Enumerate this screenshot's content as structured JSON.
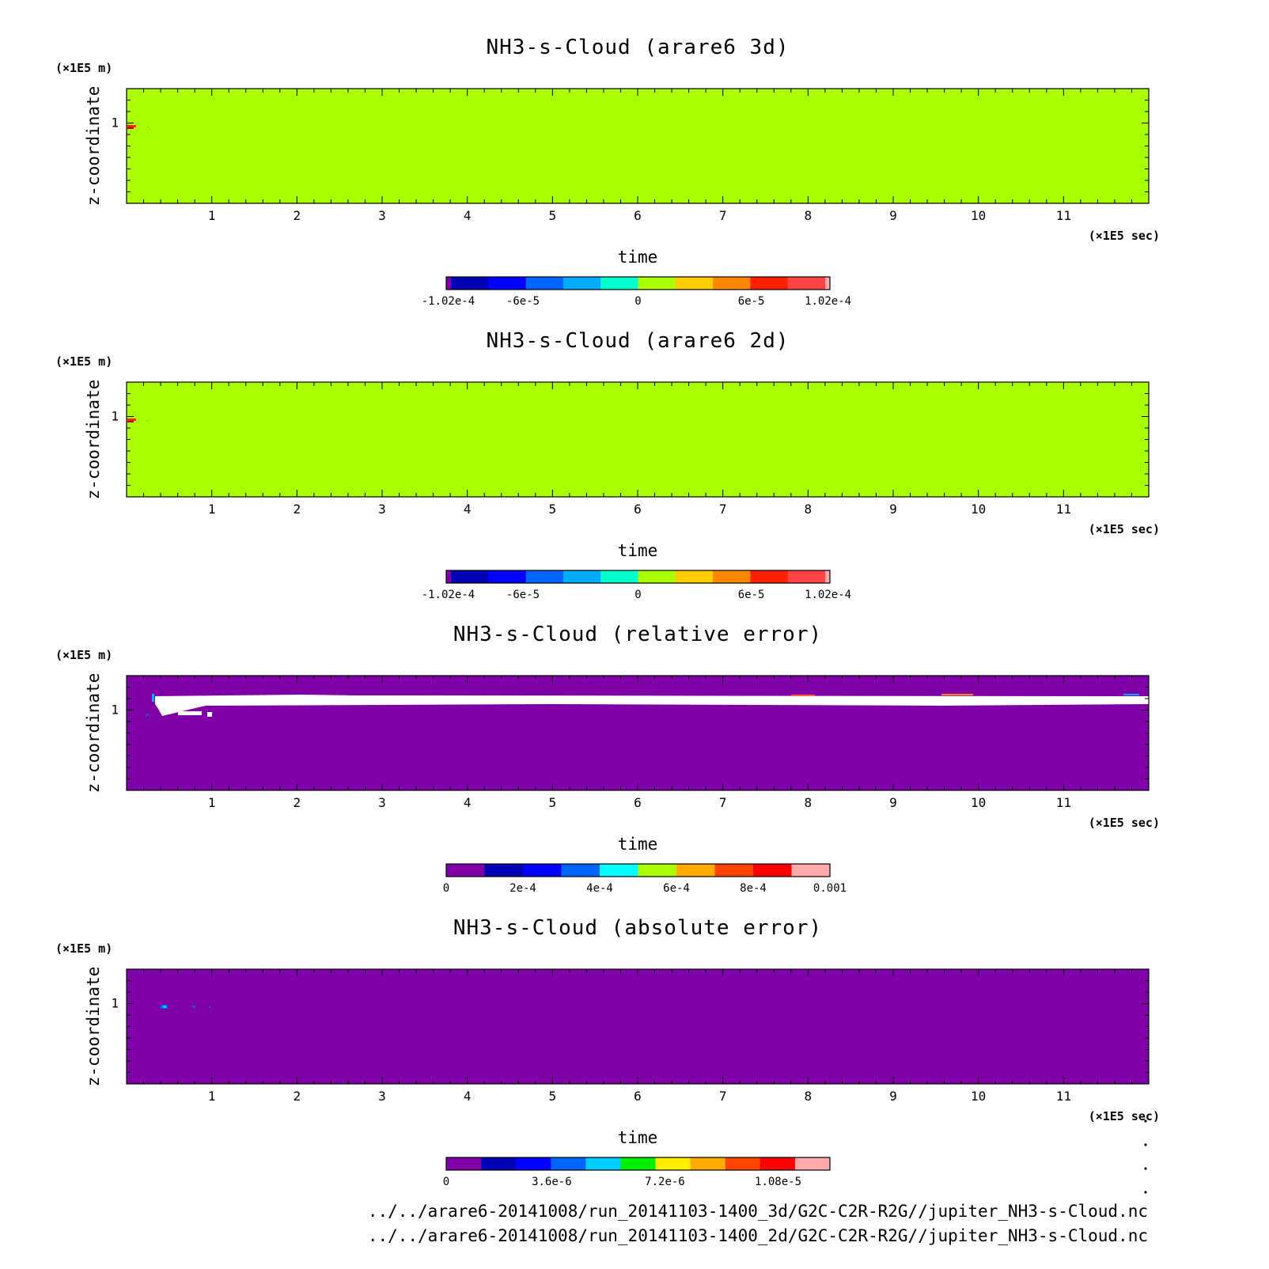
{
  "chart_data": [
    {
      "type": "heatmap",
      "title": "NH3-s-Cloud (arare6 3d)",
      "xlabel": "time",
      "x_unit": "(×1E5 sec)",
      "ylabel": "z-coordinate",
      "y_unit": "(×1E5 m)",
      "x_ticks": [
        "1",
        "2",
        "3",
        "4",
        "5",
        "6",
        "7",
        "8",
        "9",
        "10",
        "11"
      ],
      "y_ticks": [
        "1"
      ],
      "field_color": "#aaff00",
      "colorbar": {
        "colors": [
          "#8000a8",
          "#0000b4",
          "#0000ff",
          "#0064ff",
          "#00aaff",
          "#00ffcc",
          "#aaff00",
          "#ffcc00",
          "#ff8800",
          "#ff2000",
          "#ff4444",
          "#ffaaaa"
        ],
        "labels": [
          "-1.02e-4",
          "-6e-5",
          "0",
          "6e-5",
          "1.02e-4"
        ]
      }
    },
    {
      "type": "heatmap",
      "title": "NH3-s-Cloud (arare6 2d)",
      "xlabel": "time",
      "x_unit": "(×1E5 sec)",
      "ylabel": "z-coordinate",
      "y_unit": "(×1E5 m)",
      "x_ticks": [
        "1",
        "2",
        "3",
        "4",
        "5",
        "6",
        "7",
        "8",
        "9",
        "10",
        "11"
      ],
      "y_ticks": [
        "1"
      ],
      "field_color": "#aaff00",
      "colorbar": {
        "colors": [
          "#8000a8",
          "#0000b4",
          "#0000ff",
          "#0064ff",
          "#00aaff",
          "#00ffcc",
          "#aaff00",
          "#ffcc00",
          "#ff8800",
          "#ff2000",
          "#ff4444",
          "#ffaaaa"
        ],
        "labels": [
          "-1.02e-4",
          "-6e-5",
          "0",
          "6e-5",
          "1.02e-4"
        ]
      }
    },
    {
      "type": "heatmap",
      "title": "NH3-s-Cloud (relative error)",
      "xlabel": "time",
      "x_unit": "(×1E5 sec)",
      "ylabel": "z-coordinate",
      "y_unit": "(×1E5 m)",
      "x_ticks": [
        "1",
        "2",
        "3",
        "4",
        "5",
        "6",
        "7",
        "8",
        "9",
        "10",
        "11"
      ],
      "y_ticks": [
        "1"
      ],
      "field_color": "#8000a8",
      "colorbar": {
        "colors": [
          "#8000a8",
          "#0000b4",
          "#0000ff",
          "#0064ff",
          "#00ffff",
          "#aaff00",
          "#ffaa00",
          "#ff4400",
          "#ff0000",
          "#ffaaaa"
        ],
        "labels": [
          "0",
          "2e-4",
          "4e-4",
          "6e-4",
          "8e-4",
          "0.001"
        ]
      }
    },
    {
      "type": "heatmap",
      "title": "NH3-s-Cloud (absolute error)",
      "xlabel": "time",
      "x_unit": "(×1E5 sec)",
      "ylabel": "z-coordinate",
      "y_unit": "(×1E5 m)",
      "x_ticks": [
        "1",
        "2",
        "3",
        "4",
        "5",
        "6",
        "7",
        "8",
        "9",
        "10",
        "11"
      ],
      "y_ticks": [
        "1"
      ],
      "field_color": "#8000a8",
      "colorbar": {
        "colors": [
          "#8000a8",
          "#0000b4",
          "#0000ff",
          "#0064ff",
          "#00ccff",
          "#00ee00",
          "#ffee00",
          "#ffaa00",
          "#ff4400",
          "#ff0000",
          "#ffaaaa"
        ],
        "labels": [
          "0",
          "3.6e-6",
          "7.2e-6",
          "1.08e-5"
        ]
      }
    }
  ],
  "footer": {
    "path_3d": "../../arare6-20141008/run_20141103-1400_3d/G2C-C2R-R2G//jupiter_NH3-s-Cloud.nc",
    "path_2d": "../../arare6-20141008/run_20141103-1400_2d/G2C-C2R-R2G//jupiter_NH3-s-Cloud.nc"
  }
}
